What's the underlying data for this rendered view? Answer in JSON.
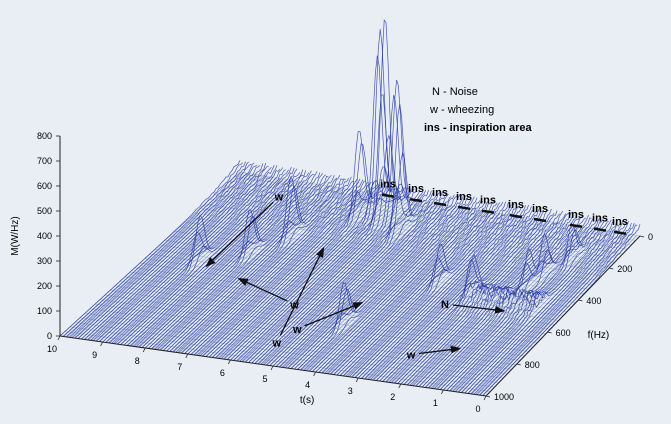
{
  "chart_data": {
    "type": "surface-waterfall",
    "title": "",
    "xlabel": "t(s)",
    "ylabel": "f(Hz)",
    "zlabel": "M(W/Hz)",
    "t_ticks": [
      "0",
      "1",
      "2",
      "3",
      "4",
      "5",
      "6",
      "7",
      "8",
      "9",
      "10"
    ],
    "f_ticks": [
      "0",
      "200",
      "400",
      "600",
      "800",
      "1000"
    ],
    "m_ticks": [
      "0",
      "100",
      "200",
      "300",
      "400",
      "500",
      "600",
      "700",
      "800"
    ],
    "tlim": [
      0,
      10
    ],
    "flim": [
      0,
      1000
    ],
    "mlim": [
      0,
      800
    ],
    "legend": [
      {
        "key": "N",
        "text": "N - Noise"
      },
      {
        "key": "w",
        "text": "w - wheezing"
      },
      {
        "key": "ins",
        "text": "ins - inspiration area"
      }
    ],
    "ins_label": "ins",
    "ins_regions": [
      {
        "t": 6.3,
        "f": 0
      },
      {
        "t": 5.6,
        "f": 0
      },
      {
        "t": 5.0,
        "f": 0
      },
      {
        "t": 4.4,
        "f": 0
      },
      {
        "t": 3.8,
        "f": 0
      },
      {
        "t": 3.1,
        "f": 0
      },
      {
        "t": 2.5,
        "f": 0
      },
      {
        "t": 1.6,
        "f": 0
      },
      {
        "t": 1.0,
        "f": 0
      },
      {
        "t": 0.5,
        "f": 0
      }
    ],
    "annotations": [
      {
        "label": "w",
        "from": {
          "t": 8.6,
          "f": 130
        },
        "to": {
          "t": 8.55,
          "f": 520
        }
      },
      {
        "label": "w",
        "from": {
          "t": 6.1,
          "f": 640
        },
        "to": {
          "t": 7.6,
          "f": 560
        }
      },
      {
        "label": "w",
        "from": {
          "t": 5.5,
          "f": 830
        },
        "to": {
          "t": 6.5,
          "f": 330
        }
      },
      {
        "label": "w",
        "from": {
          "t": 5.2,
          "f": 760
        },
        "to": {
          "t": 4.5,
          "f": 590
        }
      },
      {
        "label": "N",
        "from": {
          "t": 2.55,
          "f": 530
        },
        "to": {
          "t": 1.35,
          "f": 520
        }
      },
      {
        "label": "w",
        "from": {
          "t": 2.25,
          "f": 820
        },
        "to": {
          "t": 1.5,
          "f": 760
        }
      }
    ],
    "peaks": [
      {
        "t": 6.1,
        "f": 100,
        "m": 810
      },
      {
        "t": 5.8,
        "f": 140,
        "m": 830
      },
      {
        "t": 5.6,
        "f": 120,
        "m": 620
      },
      {
        "t": 5.2,
        "f": 190,
        "m": 520
      },
      {
        "t": 6.4,
        "f": 140,
        "m": 380
      },
      {
        "t": 7.4,
        "f": 300,
        "m": 270
      },
      {
        "t": 4.4,
        "f": 720,
        "m": 190
      },
      {
        "t": 7.9,
        "f": 420,
        "m": 200
      },
      {
        "t": 8.8,
        "f": 500,
        "m": 190
      },
      {
        "t": 3.3,
        "f": 420,
        "m": 160
      },
      {
        "t": 2.4,
        "f": 450,
        "m": 150
      },
      {
        "t": 1.3,
        "f": 380,
        "m": 160
      },
      {
        "t": 1.2,
        "f": 300,
        "m": 170
      },
      {
        "t": 0.9,
        "f": 200,
        "m": 160
      }
    ]
  }
}
